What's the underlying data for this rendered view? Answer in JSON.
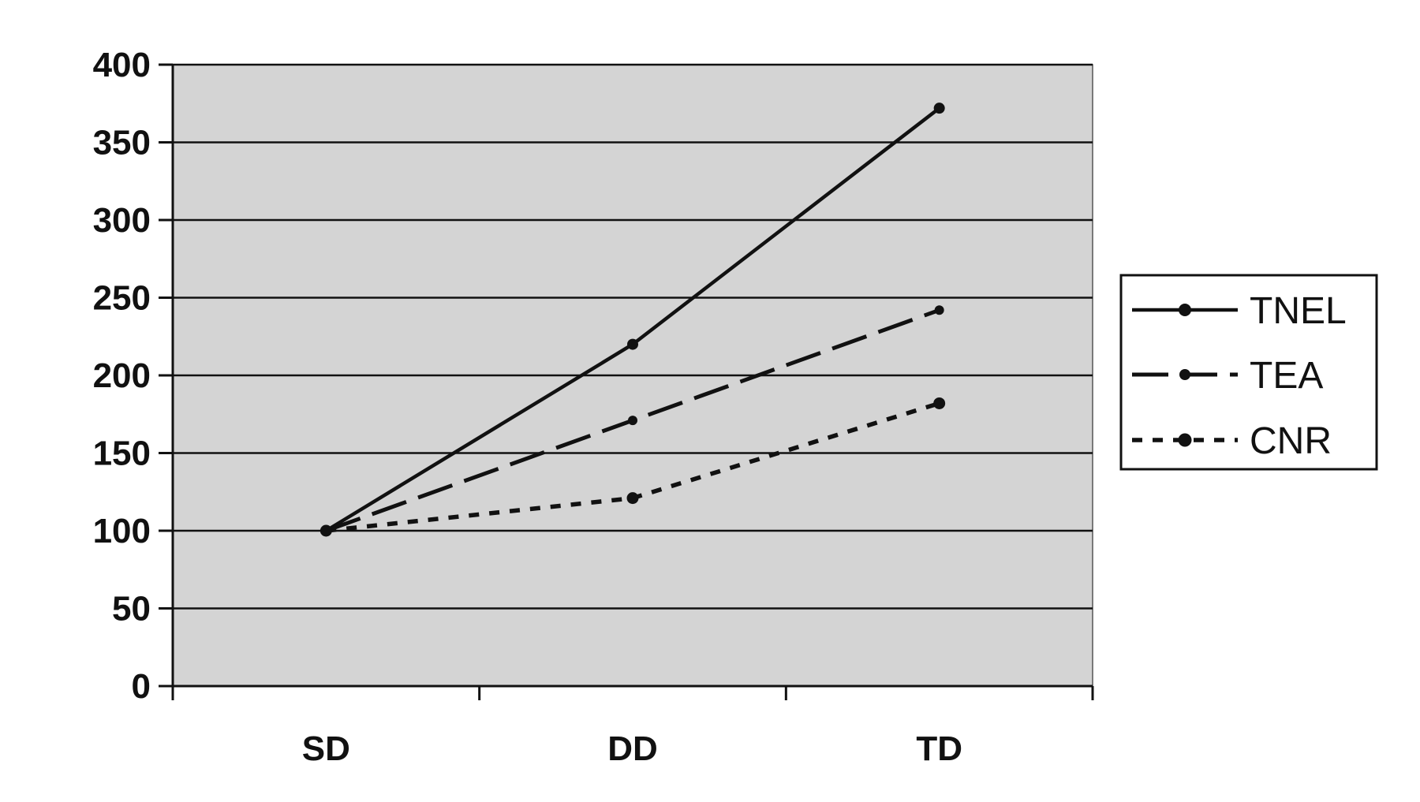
{
  "chart_data": {
    "type": "line",
    "categories": [
      "SD",
      "DD",
      "TD"
    ],
    "series": [
      {
        "name": "TNEL",
        "values": [
          100,
          220,
          372
        ]
      },
      {
        "name": "TEA",
        "values": [
          100,
          171,
          242
        ]
      },
      {
        "name": "CNR",
        "values": [
          100,
          121,
          182
        ]
      }
    ],
    "title": "",
    "xlabel": "",
    "ylabel": "",
    "ylim": [
      0,
      400
    ],
    "yticks": [
      0,
      50,
      100,
      150,
      200,
      250,
      300,
      350,
      400
    ],
    "ytick_labels": [
      "0",
      "50",
      "100",
      "150",
      "200",
      "250",
      "300",
      "350",
      "400"
    ],
    "grid": true,
    "legend_position": "right",
    "plot_background": "#d4d4d4",
    "line_color": "#111111"
  }
}
